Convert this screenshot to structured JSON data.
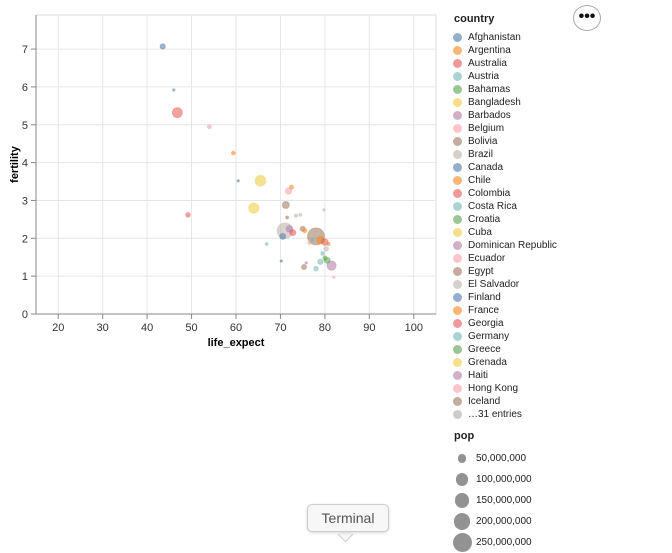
{
  "chart_data": {
    "type": "scatter",
    "xlabel": "life_expect",
    "ylabel": "fertility",
    "xlim": [
      15,
      105
    ],
    "ylim": [
      0,
      7.9
    ],
    "x_ticks": [
      "20",
      "30",
      "40",
      "50",
      "60",
      "70",
      "80",
      "90",
      "100"
    ],
    "x_tick_values": [
      20,
      30,
      40,
      50,
      60,
      70,
      80,
      90,
      100
    ],
    "y_ticks": [
      "0",
      "1",
      "2",
      "3",
      "4",
      "5",
      "6",
      "7"
    ],
    "y_tick_values": [
      0,
      1,
      2,
      3,
      4,
      5,
      6,
      7
    ],
    "grid": true,
    "legend_color_title": "country",
    "legend_size_title": "pop",
    "legend_more": "…31 entries",
    "countries": [
      {
        "name": "Afghanistan",
        "color": "#4c78a8"
      },
      {
        "name": "Argentina",
        "color": "#f58518"
      },
      {
        "name": "Australia",
        "color": "#e45756"
      },
      {
        "name": "Austria",
        "color": "#72b7b2"
      },
      {
        "name": "Bahamas",
        "color": "#54a24b"
      },
      {
        "name": "Bangladesh",
        "color": "#eeca3b"
      },
      {
        "name": "Barbados",
        "color": "#b279a2"
      },
      {
        "name": "Belgium",
        "color": "#ff9da6"
      },
      {
        "name": "Bolivia",
        "color": "#9d755d"
      },
      {
        "name": "Brazil",
        "color": "#bab0ac"
      },
      {
        "name": "Canada",
        "color": "#4c78a8"
      },
      {
        "name": "Chile",
        "color": "#f58518"
      },
      {
        "name": "Colombia",
        "color": "#e45756"
      },
      {
        "name": "Costa Rica",
        "color": "#72b7b2"
      },
      {
        "name": "Croatia",
        "color": "#54a24b"
      },
      {
        "name": "Cuba",
        "color": "#eeca3b"
      },
      {
        "name": "Dominican Republic",
        "color": "#b279a2"
      },
      {
        "name": "Ecuador",
        "color": "#ff9da6"
      },
      {
        "name": "Egypt",
        "color": "#9d755d"
      },
      {
        "name": "El Salvador",
        "color": "#bab0ac"
      },
      {
        "name": "Finland",
        "color": "#4c78a8"
      },
      {
        "name": "France",
        "color": "#f58518"
      },
      {
        "name": "Georgia",
        "color": "#e45756"
      },
      {
        "name": "Germany",
        "color": "#72b7b2"
      },
      {
        "name": "Greece",
        "color": "#54a24b"
      },
      {
        "name": "Grenada",
        "color": "#eeca3b"
      },
      {
        "name": "Haiti",
        "color": "#b279a2"
      },
      {
        "name": "Hong Kong",
        "color": "#ff9da6"
      },
      {
        "name": "Iceland",
        "color": "#9d755d"
      }
    ],
    "size_legend": [
      {
        "label": "50,000,000",
        "value": 50000000
      },
      {
        "label": "100,000,000",
        "value": 100000000
      },
      {
        "label": "150,000,000",
        "value": 150000000
      },
      {
        "label": "200,000,000",
        "value": 200000000
      },
      {
        "label": "250,000,000",
        "value": 250000000
      }
    ],
    "points": [
      {
        "x": 43.5,
        "y": 7.07,
        "pop": 20000000,
        "color": "#4c78a8"
      },
      {
        "x": 46.0,
        "y": 5.92,
        "pop": 3000000,
        "color": "#4c78a8"
      },
      {
        "x": 46.8,
        "y": 5.32,
        "pop": 70000000,
        "color": "#e45756"
      },
      {
        "x": 54.0,
        "y": 4.95,
        "pop": 12000000,
        "color": "#ff9da6"
      },
      {
        "x": 59.4,
        "y": 4.25,
        "pop": 10000000,
        "color": "#f58518"
      },
      {
        "x": 60.5,
        "y": 3.52,
        "pop": 4000000,
        "color": "#4c78a8"
      },
      {
        "x": 65.5,
        "y": 3.52,
        "pop": 80000000,
        "color": "#eeca3b"
      },
      {
        "x": 64.0,
        "y": 2.8,
        "pop": 75000000,
        "color": "#eeca3b"
      },
      {
        "x": 49.2,
        "y": 2.62,
        "pop": 15000000,
        "color": "#e45756"
      },
      {
        "x": 71.2,
        "y": 2.88,
        "pop": 35000000,
        "color": "#9d755d"
      },
      {
        "x": 71.8,
        "y": 3.25,
        "pop": 30000000,
        "color": "#ff9da6"
      },
      {
        "x": 72.5,
        "y": 3.35,
        "pop": 12000000,
        "color": "#f58518"
      },
      {
        "x": 71.0,
        "y": 2.2,
        "pop": 170000000,
        "color": "#bab0ac"
      },
      {
        "x": 70.5,
        "y": 2.05,
        "pop": 25000000,
        "color": "#4c78a8"
      },
      {
        "x": 72.0,
        "y": 2.25,
        "pop": 30000000,
        "color": "#b279a2"
      },
      {
        "x": 72.8,
        "y": 2.15,
        "pop": 25000000,
        "color": "#e45756"
      },
      {
        "x": 73.5,
        "y": 2.6,
        "pop": 8000000,
        "color": "#bab0ac"
      },
      {
        "x": 74.5,
        "y": 2.62,
        "pop": 6000000,
        "color": "#bab0ac"
      },
      {
        "x": 75.0,
        "y": 2.25,
        "pop": 18000000,
        "color": "#9d755d"
      },
      {
        "x": 75.5,
        "y": 2.2,
        "pop": 12000000,
        "color": "#f58518"
      },
      {
        "x": 71.5,
        "y": 2.55,
        "pop": 6000000,
        "color": "#9d755d"
      },
      {
        "x": 76.5,
        "y": 1.88,
        "pop": 8000000,
        "color": "#ff9da6"
      },
      {
        "x": 77.2,
        "y": 1.95,
        "pop": 10000000,
        "color": "#72b7b2"
      },
      {
        "x": 78.0,
        "y": 2.05,
        "pop": 200000000,
        "color": "#9d755d"
      },
      {
        "x": 79.0,
        "y": 1.95,
        "pop": 40000000,
        "color": "#f58518"
      },
      {
        "x": 80.0,
        "y": 1.9,
        "pop": 30000000,
        "color": "#e45756"
      },
      {
        "x": 80.3,
        "y": 1.72,
        "pop": 15000000,
        "color": "#bab0ac"
      },
      {
        "x": 79.5,
        "y": 1.6,
        "pop": 10000000,
        "color": "#72b7b2"
      },
      {
        "x": 80.0,
        "y": 1.48,
        "pop": 12000000,
        "color": "#54a24b"
      },
      {
        "x": 80.5,
        "y": 1.42,
        "pop": 25000000,
        "color": "#54a24b"
      },
      {
        "x": 79.0,
        "y": 1.38,
        "pop": 20000000,
        "color": "#72b7b2"
      },
      {
        "x": 78.0,
        "y": 1.2,
        "pop": 15000000,
        "color": "#72b7b2"
      },
      {
        "x": 81.5,
        "y": 1.28,
        "pop": 60000000,
        "color": "#b279a2"
      },
      {
        "x": 75.3,
        "y": 1.24,
        "pop": 18000000,
        "color": "#9d755d"
      },
      {
        "x": 75.8,
        "y": 1.35,
        "pop": 3000000,
        "color": "#b279a2"
      },
      {
        "x": 66.9,
        "y": 1.85,
        "pop": 6000000,
        "color": "#72b7b2"
      },
      {
        "x": 70.2,
        "y": 1.4,
        "pop": 2000000,
        "color": "#4c78a8"
      },
      {
        "x": 79.8,
        "y": 2.75,
        "pop": 2000000,
        "color": "#bab0ac"
      },
      {
        "x": 82.0,
        "y": 0.97,
        "pop": 2000000,
        "color": "#ff9da6"
      },
      {
        "x": 80.8,
        "y": 1.85,
        "pop": 8000000,
        "color": "#f58518"
      }
    ]
  },
  "ui": {
    "menu_label": "•••",
    "tooltip": "Terminal"
  }
}
